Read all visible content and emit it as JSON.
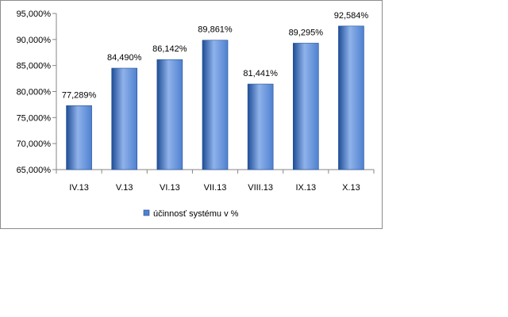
{
  "chart_data": {
    "type": "bar",
    "categories": [
      "IV.13",
      "V.13",
      "VI.13",
      "VII.13",
      "VIII.13",
      "IX.13",
      "X.13"
    ],
    "series": [
      {
        "name": "účinnosť systému  v %",
        "values": [
          77.289,
          84.49,
          86.142,
          89.861,
          81.441,
          89.295,
          92.584
        ],
        "labels": [
          "77,289%",
          "84,490%",
          "86,142%",
          "89,861%",
          "81,441%",
          "89,295%",
          "92,584%"
        ]
      }
    ],
    "ylim": [
      65,
      95
    ],
    "yticks": [
      65,
      70,
      75,
      80,
      85,
      90,
      95
    ],
    "ytick_labels": [
      "65,000%",
      "70,000%",
      "75,000%",
      "80,000%",
      "85,000%",
      "90,000%",
      "95,000%"
    ],
    "legend_position": "bottom",
    "grid": false,
    "colors": {
      "bar_dark": "#1f4e96",
      "bar_mid": "#4f81d0",
      "bar_light": "#8fb2ea",
      "axis": "#868686"
    }
  }
}
